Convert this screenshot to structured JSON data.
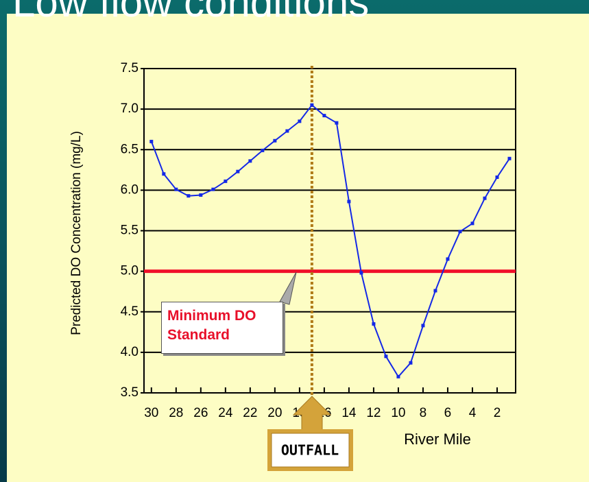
{
  "chart_data": {
    "type": "line",
    "title": "Low flow conditions",
    "y_label": "Predicted DO Concentration (mg/L)",
    "x_label": "River Mile",
    "x": [
      30,
      29,
      28,
      27,
      26,
      25,
      24,
      23,
      22,
      21,
      20,
      19,
      18,
      17,
      16,
      15,
      14,
      13,
      12,
      11,
      10,
      9,
      8,
      7,
      6,
      5,
      4,
      3,
      2,
      1
    ],
    "series": [
      {
        "name": "Predicted DO",
        "color": "#1428e6",
        "values": [
          6.6,
          6.2,
          6.01,
          5.93,
          5.94,
          6.01,
          6.11,
          6.23,
          6.36,
          6.49,
          6.61,
          6.73,
          6.85,
          7.05,
          6.92,
          6.83,
          5.86,
          4.98,
          4.35,
          3.95,
          3.7,
          3.87,
          4.33,
          4.76,
          5.15,
          5.49,
          5.59,
          5.9,
          6.16,
          6.39
        ]
      }
    ],
    "xlim": [
      30.6,
      0.5
    ],
    "xticks": [
      30,
      28,
      26,
      24,
      22,
      20,
      18,
      16,
      14,
      12,
      10,
      8,
      6,
      4,
      2
    ],
    "ylim": [
      3.5,
      7.5
    ],
    "yticks": [
      3.5,
      {
        "value": 4,
        "label": "4.0"
      },
      4.5,
      {
        "value": 5,
        "label": "5.0"
      },
      5.5,
      {
        "value": 6,
        "label": "6.0"
      },
      6.5,
      {
        "value": 7,
        "label": "7.0"
      },
      7.5
    ],
    "grid": true,
    "reference_value": 5,
    "reference_color": "#f0102a",
    "reference_label": "Minimum DO Standard",
    "outfall_mile": 17,
    "outfall_color": "#b07a18",
    "outfall_label": "OUTFALL"
  }
}
